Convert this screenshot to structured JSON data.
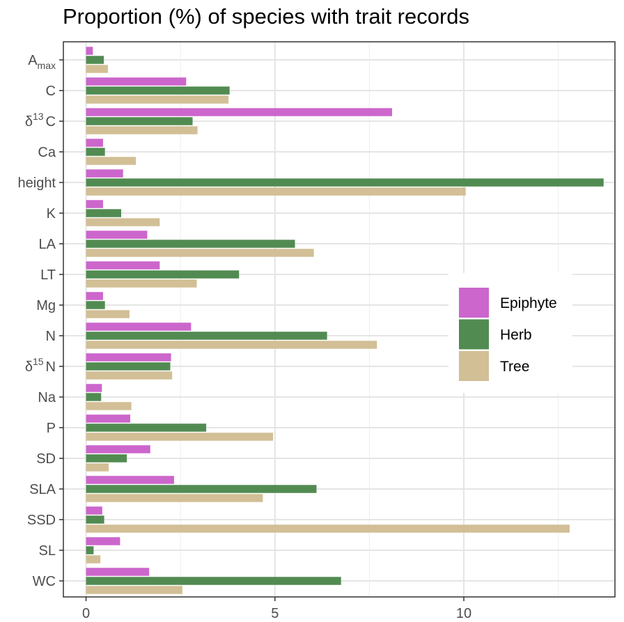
{
  "chart_data": {
    "type": "bar",
    "orientation": "horizontal",
    "title": "Proportion (%) of species with trait records",
    "xlabel": "",
    "ylabel": "",
    "xlim": [
      -0.6,
      14.0
    ],
    "x_ticks": [
      0,
      5,
      10
    ],
    "grid": true,
    "legend_position": "right",
    "categories": [
      {
        "label": "A",
        "sub": "max",
        "sup": ""
      },
      {
        "label": "C",
        "sub": "",
        "sup": ""
      },
      {
        "label": "C",
        "pre": "δ",
        "sup": "13",
        "sub": ""
      },
      {
        "label": "Ca",
        "sub": "",
        "sup": ""
      },
      {
        "label": "height",
        "sub": "",
        "sup": ""
      },
      {
        "label": "K",
        "sub": "",
        "sup": ""
      },
      {
        "label": "LA",
        "sub": "",
        "sup": ""
      },
      {
        "label": "LT",
        "sub": "",
        "sup": ""
      },
      {
        "label": "Mg",
        "sub": "",
        "sup": ""
      },
      {
        "label": "N",
        "sub": "",
        "sup": ""
      },
      {
        "label": "N",
        "pre": "δ",
        "sup": "15",
        "sub": ""
      },
      {
        "label": "Na",
        "sub": "",
        "sup": ""
      },
      {
        "label": "P",
        "sub": "",
        "sup": ""
      },
      {
        "label": "SD",
        "sub": "",
        "sup": ""
      },
      {
        "label": "SLA",
        "sub": "",
        "sup": ""
      },
      {
        "label": "SSD",
        "sub": "",
        "sup": ""
      },
      {
        "label": "SL",
        "sub": "",
        "sup": ""
      },
      {
        "label": "WC",
        "sub": "",
        "sup": ""
      }
    ],
    "series": [
      {
        "name": "Epiphyte",
        "color": "#cc66cc",
        "values": [
          0.18,
          2.65,
          8.1,
          0.45,
          0.98,
          0.45,
          1.62,
          1.95,
          0.45,
          2.78,
          2.25,
          0.42,
          1.17,
          1.7,
          2.33,
          0.43,
          0.9,
          1.67
        ]
      },
      {
        "name": "Herb",
        "color": "#528b52",
        "values": [
          0.47,
          3.8,
          2.82,
          0.5,
          13.7,
          0.93,
          5.53,
          4.05,
          0.5,
          6.38,
          2.23,
          0.4,
          3.18,
          1.08,
          6.1,
          0.48,
          0.2,
          6.75
        ]
      },
      {
        "name": "Tree",
        "color": "#d2bf96",
        "values": [
          0.58,
          3.77,
          2.95,
          1.32,
          10.05,
          1.95,
          6.03,
          2.93,
          1.15,
          7.7,
          2.28,
          1.2,
          4.95,
          0.6,
          4.68,
          12.8,
          0.38,
          2.55
        ]
      }
    ]
  }
}
